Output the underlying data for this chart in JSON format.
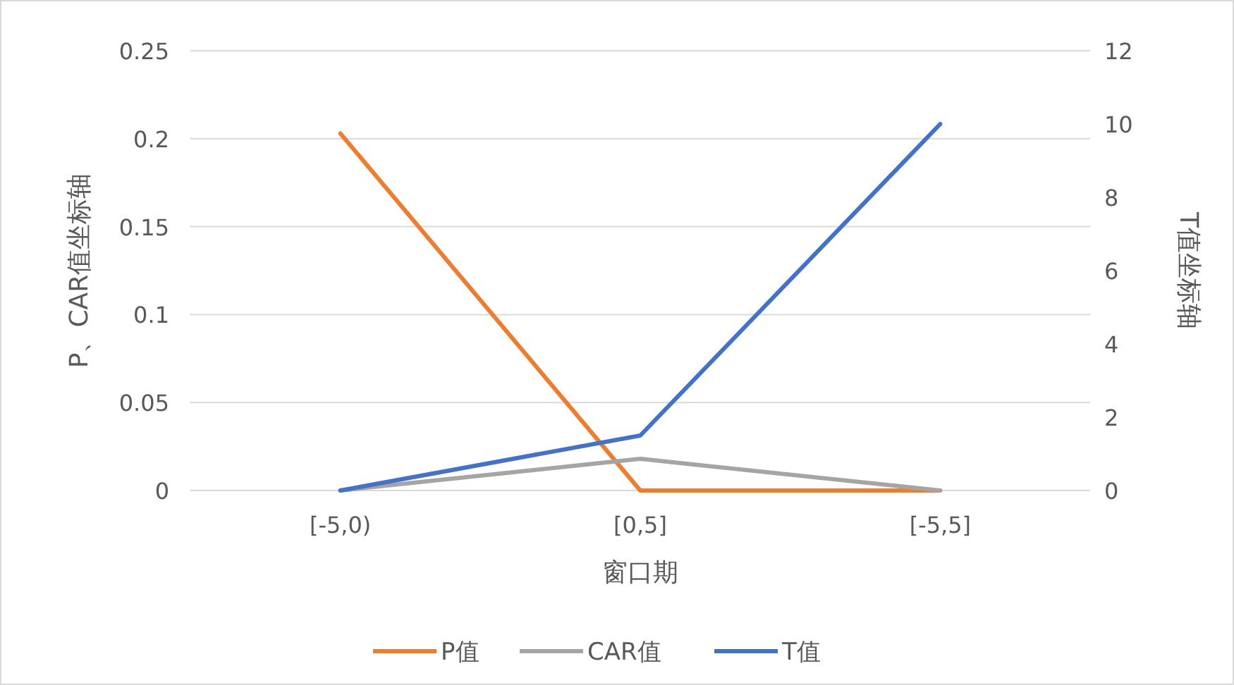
{
  "chart_data": {
    "type": "line",
    "xlabel": "窗口期",
    "ylabel": "P、CAR值坐标轴",
    "y2label": "T值坐标轴",
    "categories": [
      "[-5,0)",
      "[0,5]",
      "[-5,5]"
    ],
    "series": [
      {
        "name": "P值",
        "color": "#ed7d31",
        "values": [
          0.203,
          0,
          0
        ]
      },
      {
        "name": "CAR值",
        "color": "#a5a5a5",
        "values": [
          0,
          0.018,
          0
        ]
      },
      {
        "name": "T值",
        "color": "#4472c4",
        "values": [
          0,
          1.5,
          10
        ],
        "axis": "y2"
      }
    ],
    "ylim": [
      0,
      0.25
    ],
    "yticks": [
      0,
      0.05,
      0.1,
      0.15,
      0.2,
      0.25
    ],
    "y2lim": [
      0,
      12
    ],
    "y2ticks": [
      0,
      2,
      4,
      6,
      8,
      10,
      12
    ],
    "grid": "y",
    "legend": "bottom",
    "marker": "none",
    "line_style": "solid"
  }
}
